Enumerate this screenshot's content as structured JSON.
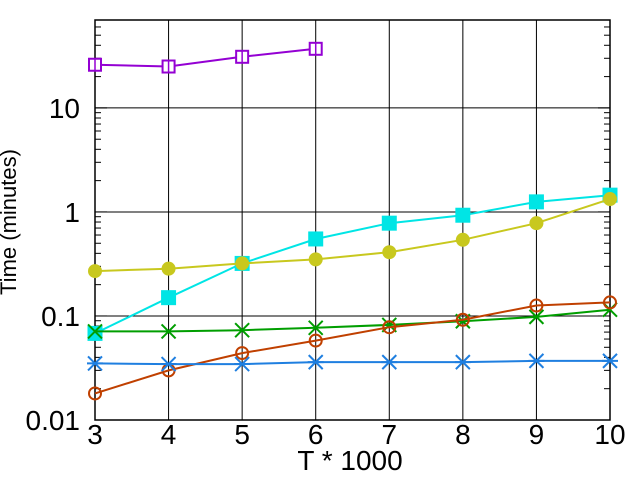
{
  "chart_data": {
    "type": "line",
    "xlabel": "T * 1000",
    "ylabel": "Time (minutes)",
    "xlim": [
      3,
      10
    ],
    "ylim": [
      0.01,
      70
    ],
    "yscale": "log",
    "grid": true,
    "x_ticks": [
      "3",
      "4",
      "5",
      "6",
      "7",
      "8",
      "9",
      "10"
    ],
    "y_ticks": [
      {
        "value": 0.01,
        "label": "0.01"
      },
      {
        "value": 0.1,
        "label": "0.1"
      },
      {
        "value": 1,
        "label": "1"
      },
      {
        "value": 10,
        "label": "10"
      }
    ],
    "series": [
      {
        "color": "#9400d3",
        "marker": "open-square",
        "x": [
          3,
          4,
          5,
          6
        ],
        "y": [
          26,
          25,
          31,
          37
        ]
      },
      {
        "color": "#00e5e5",
        "marker": "filled-square",
        "x": [
          3,
          4,
          5,
          6,
          7,
          8,
          9,
          10
        ],
        "y": [
          0.068,
          0.15,
          0.32,
          0.55,
          0.78,
          0.93,
          1.25,
          1.45
        ]
      },
      {
        "color": "#c8c81e",
        "marker": "filled-circle",
        "x": [
          3,
          4,
          5,
          6,
          7,
          8,
          9,
          10
        ],
        "y": [
          0.27,
          0.285,
          0.32,
          0.35,
          0.41,
          0.54,
          0.78,
          1.33
        ]
      },
      {
        "color": "#009e00",
        "marker": "x-cross",
        "x": [
          3,
          4,
          5,
          6,
          7,
          8,
          9,
          10
        ],
        "y": [
          0.071,
          0.071,
          0.073,
          0.077,
          0.082,
          0.089,
          0.098,
          0.115
        ]
      },
      {
        "color": "#c04000",
        "marker": "open-circle",
        "x": [
          3,
          4,
          5,
          6,
          7,
          8,
          9,
          10
        ],
        "y": [
          0.018,
          0.03,
          0.044,
          0.058,
          0.078,
          0.092,
          0.126,
          0.135
        ]
      },
      {
        "color": "#1f7fe0",
        "marker": "asterisk",
        "x": [
          3,
          4,
          5,
          6,
          7,
          8,
          9,
          10
        ],
        "y": [
          0.035,
          0.0345,
          0.0345,
          0.036,
          0.036,
          0.036,
          0.037,
          0.037
        ]
      }
    ]
  }
}
